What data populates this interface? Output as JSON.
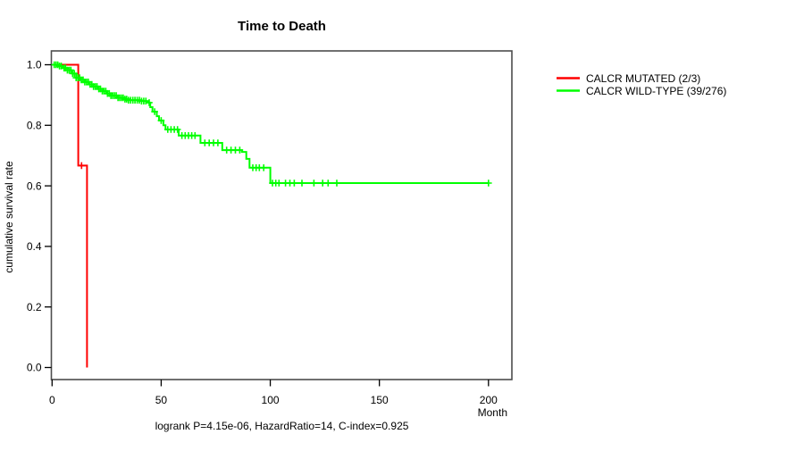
{
  "title": "Time to Death",
  "footer": "logrank P=4.15e-06, HazardRatio=14, C-index=0.925",
  "axes": {
    "x": {
      "unit_label": "Month",
      "ticks": [
        "0",
        "50",
        "100",
        "150",
        "200"
      ],
      "tick_values": [
        0,
        50,
        100,
        150,
        200
      ]
    },
    "y": {
      "label": "cumulative survival rate",
      "ticks": [
        "0.0",
        "0.2",
        "0.4",
        "0.6",
        "0.8",
        "1.0"
      ],
      "tick_values": [
        0,
        0.2,
        0.4,
        0.6,
        0.8,
        1.0
      ]
    }
  },
  "legend": {
    "items": [
      {
        "label": "CALCR MUTATED (2/3)",
        "color": "#ff0000"
      },
      {
        "label": "CALCR WILD-TYPE (39/276)",
        "color": "#00ff00"
      }
    ]
  },
  "chart_data": {
    "type": "line",
    "subtype": "kaplan-meier-step",
    "title": "Time to Death",
    "xlabel": "Month",
    "ylabel": "cumulative survival rate",
    "xlim": [
      0,
      200
    ],
    "ylim": [
      0.0,
      1.0
    ],
    "grid": false,
    "legend_position": "right-outside",
    "annotations": {
      "logrank_p": "4.15e-06",
      "hazard_ratio": "14",
      "c_index": "0.925"
    },
    "series": [
      {
        "name": "CALCR MUTATED (2/3)",
        "color": "#ff0000",
        "n_total": 3,
        "n_events": 2,
        "steps": [
          [
            0,
            1.0
          ],
          [
            12,
            0.667
          ],
          [
            16,
            0.0
          ]
        ],
        "censor_months": [
          13.5
        ]
      },
      {
        "name": "CALCR WILD-TYPE (39/276)",
        "color": "#00ff00",
        "n_total": 276,
        "n_events": 39,
        "steps": [
          [
            0,
            1.0
          ],
          [
            3,
            0.996
          ],
          [
            5,
            0.989
          ],
          [
            7,
            0.982
          ],
          [
            9,
            0.971
          ],
          [
            11,
            0.957
          ],
          [
            13,
            0.95
          ],
          [
            15,
            0.943
          ],
          [
            17,
            0.935
          ],
          [
            19,
            0.928
          ],
          [
            21,
            0.92
          ],
          [
            23,
            0.913
          ],
          [
            25,
            0.905
          ],
          [
            27,
            0.898
          ],
          [
            30,
            0.891
          ],
          [
            33,
            0.886
          ],
          [
            35,
            0.883
          ],
          [
            41,
            0.88
          ],
          [
            44,
            0.875
          ],
          [
            45,
            0.86
          ],
          [
            46,
            0.845
          ],
          [
            48,
            0.83
          ],
          [
            49,
            0.816
          ],
          [
            51,
            0.8
          ],
          [
            52,
            0.786
          ],
          [
            58,
            0.766
          ],
          [
            68,
            0.742
          ],
          [
            78,
            0.718
          ],
          [
            87,
            0.712
          ],
          [
            89,
            0.689
          ],
          [
            90.5,
            0.66
          ],
          [
            100,
            0.609
          ],
          [
            200,
            0.609
          ]
        ],
        "censor_months": [
          1,
          1.8,
          2.6,
          3.4,
          4.2,
          5.5,
          6.2,
          7,
          7.8,
          8.6,
          9.4,
          10.2,
          11,
          11.8,
          12.6,
          13.4,
          14.2,
          15,
          15.8,
          16.6,
          17.4,
          18.2,
          19,
          19.8,
          20.6,
          21.4,
          22.2,
          23,
          23.8,
          24.6,
          25.4,
          26.2,
          27,
          27.8,
          28.6,
          29.4,
          30.2,
          31,
          31.8,
          32.6,
          33.4,
          34.2,
          35,
          36,
          37,
          38,
          39,
          40,
          41,
          42,
          43,
          44.5,
          47,
          50,
          53,
          54.5,
          56,
          57.5,
          59.5,
          61,
          62.5,
          64,
          65.5,
          70,
          72,
          74,
          76,
          80,
          82,
          84,
          86,
          92,
          93.5,
          95,
          97,
          101,
          102.5,
          104,
          107,
          109,
          111,
          114.5,
          120,
          124,
          126.5,
          130.5,
          200
        ]
      }
    ]
  }
}
